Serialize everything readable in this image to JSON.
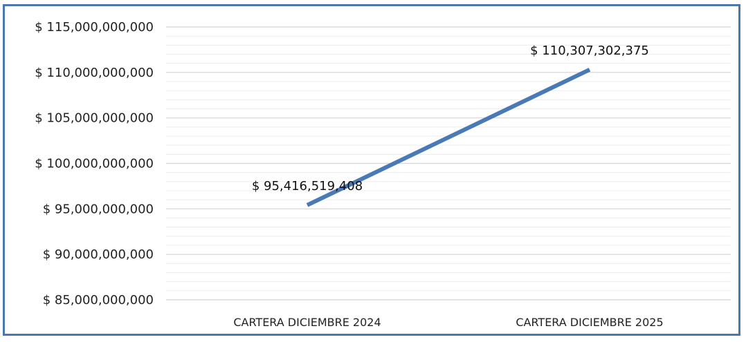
{
  "chart_data": {
    "type": "line",
    "title": "",
    "xlabel": "",
    "ylabel": "",
    "categories": [
      "CARTERA DICIEMBRE 2024",
      "CARTERA DICIEMBRE 2025"
    ],
    "series": [
      {
        "values": [
          95416519408,
          110307302375
        ],
        "labels": [
          "$ 95,416,519,408",
          "$ 110,307,302,375"
        ],
        "color": "#4a7ab5"
      }
    ],
    "ylim": [
      85000000000,
      115000000000
    ],
    "y_ticks": [
      85000000000,
      90000000000,
      95000000000,
      100000000000,
      105000000000,
      110000000000,
      115000000000
    ],
    "y_tick_labels": [
      "$ 85,000,000,000",
      "$ 90,000,000,000",
      "$ 95,000,000,000",
      "$ 100,000,000,000",
      "$ 105,000,000,000",
      "$ 110,000,000,000",
      "$ 115,000,000,000"
    ],
    "grid": true,
    "legend": "none"
  },
  "colors": {
    "frame": "#4a78ad",
    "major_grid": "#d4d4d4",
    "minor_grid": "#ececec",
    "line": "#4a7ab5"
  }
}
